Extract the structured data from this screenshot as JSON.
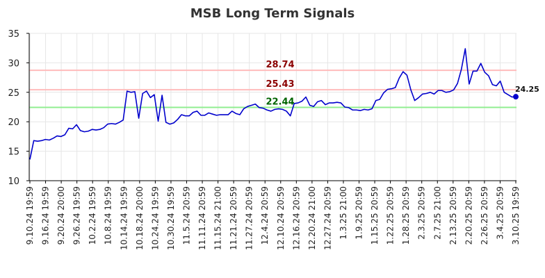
{
  "chart_data": {
    "type": "line",
    "title": "MSB Long Term Signals",
    "xlabel": "",
    "ylabel": "",
    "ylim": [
      10,
      35
    ],
    "yticks": [
      10,
      15,
      20,
      25,
      30,
      35
    ],
    "grid": true,
    "x_tick_labels": [
      "9.10.24 19:59",
      "9.16.24 19:59",
      "9.20.24 20:00",
      "9.26.24 19:59",
      "10.2.24 19:59",
      "10.8.24 19:59",
      "10.14.24 19:59",
      "10.18.24 20:00",
      "10.24.24 19:59",
      "10.30.24 19:59",
      "11.5.24 20:59",
      "11.11.24 20:59",
      "11.15.24 21:00",
      "11.21.24 20:59",
      "11.27.24 20:59",
      "12.4.24 20:59",
      "12.10.24 20:59",
      "12.16.24 20:59",
      "12.20.24 21:00",
      "12.27.24 20:59",
      "1.3.25 21:00",
      "1.9.25 20:59",
      "1.15.25 20:59",
      "1.22.25 20:59",
      "1.28.25 20:59",
      "2.3.25 20:59",
      "2.7.25 21:00",
      "2.13.25 20:59",
      "2.20.25 20:59",
      "2.26.25 20:59",
      "3.4.25 20:59",
      "3.10.25 19:59"
    ],
    "series": [
      {
        "color": "#0000cc",
        "values": [
          13.6,
          16.8,
          16.7,
          16.8,
          17.0,
          16.9,
          17.2,
          17.6,
          17.5,
          17.8,
          18.9,
          18.8,
          19.5,
          18.5,
          18.3,
          18.4,
          18.7,
          18.6,
          18.7,
          19.0,
          19.6,
          19.7,
          19.6,
          19.9,
          20.3,
          25.2,
          25.0,
          25.1,
          20.6,
          24.8,
          25.2,
          24.1,
          24.6,
          20.1,
          24.5,
          19.9,
          19.6,
          19.8,
          20.4,
          21.2,
          21.0,
          21.0,
          21.6,
          21.8,
          21.1,
          21.1,
          21.5,
          21.3,
          21.1,
          21.2,
          21.2,
          21.2,
          21.8,
          21.4,
          21.2,
          22.2,
          22.6,
          22.8,
          23.0,
          22.4,
          22.3,
          22.0,
          21.8,
          22.1,
          22.2,
          22.1,
          21.8,
          21.0,
          23.1,
          23.2,
          23.5,
          24.2,
          22.8,
          22.6,
          23.4,
          23.6,
          22.9,
          23.2,
          23.2,
          23.3,
          23.2,
          22.5,
          22.4,
          22.0,
          22.0,
          21.9,
          22.1,
          22.0,
          22.2,
          23.6,
          23.8,
          24.9,
          25.5,
          25.6,
          25.8,
          27.4,
          28.5,
          27.9,
          25.4,
          23.6,
          24.1,
          24.7,
          24.8,
          25.0,
          24.7,
          25.3,
          25.3,
          25.0,
          25.1,
          25.4,
          26.5,
          28.9,
          32.4,
          26.4,
          28.6,
          28.6,
          29.9,
          28.4,
          27.8,
          26.3,
          26.1,
          26.9,
          25.0,
          24.6,
          24.2,
          24.25
        ]
      }
    ],
    "horizontal_lines": [
      {
        "value": 28.74,
        "label": "28.74",
        "line_color": "#ffbbbb",
        "label_color": "#8b0000"
      },
      {
        "value": 25.43,
        "label": "25.43",
        "line_color": "#ffbbbb",
        "label_color": "#8b0000"
      },
      {
        "value": 22.44,
        "label": "22.44",
        "line_color": "#90ee90",
        "label_color": "#006400"
      }
    ],
    "last_point": {
      "value": 24.25,
      "label": "24.25",
      "color": "#0000cc"
    }
  }
}
